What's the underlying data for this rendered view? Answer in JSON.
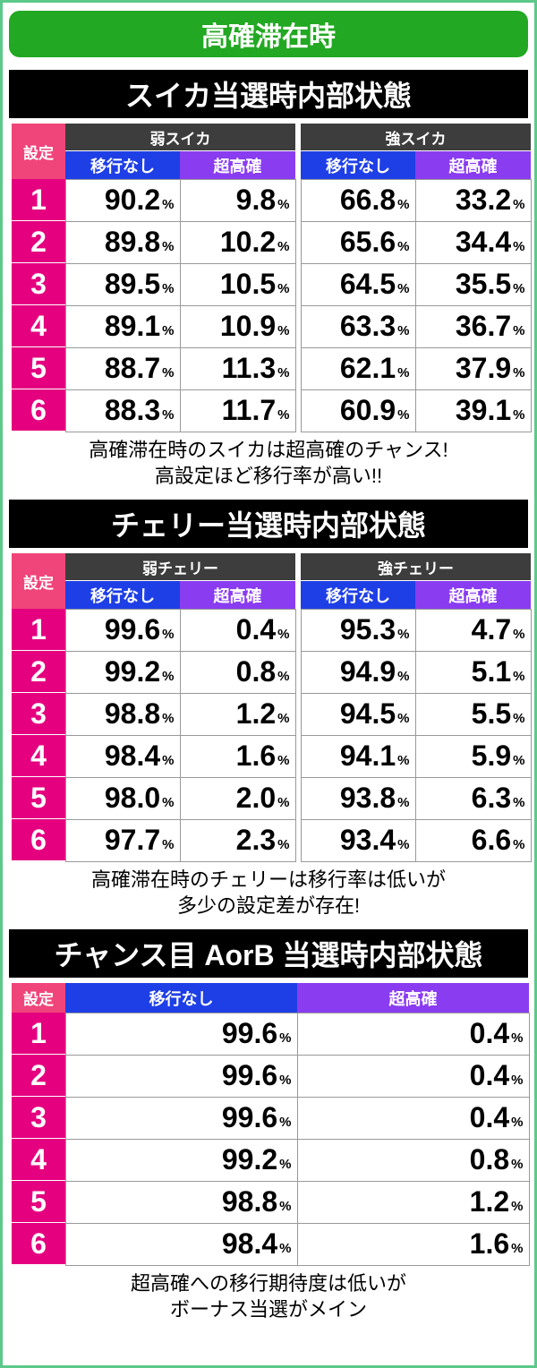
{
  "header": {
    "title": "高確滞在時"
  },
  "sections": [
    {
      "title": "スイカ当選時内部状態",
      "setting_label": "設定",
      "groups": [
        {
          "name": "弱スイカ",
          "columns": [
            "移行なし",
            "超高確"
          ]
        },
        {
          "name": "強スイカ",
          "columns": [
            "移行なし",
            "超高確"
          ]
        }
      ],
      "rows": [
        [
          "1",
          "90.2%",
          "9.8%",
          "66.8%",
          "33.2%"
        ],
        [
          "2",
          "89.8%",
          "10.2%",
          "65.6%",
          "34.4%"
        ],
        [
          "3",
          "89.5%",
          "10.5%",
          "64.5%",
          "35.5%"
        ],
        [
          "4",
          "89.1%",
          "10.9%",
          "63.3%",
          "36.7%"
        ],
        [
          "5",
          "88.7%",
          "11.3%",
          "62.1%",
          "37.9%"
        ],
        [
          "6",
          "88.3%",
          "11.7%",
          "60.9%",
          "39.1%"
        ]
      ],
      "note": [
        "高確滞在時のスイカは超高確のチャンス!",
        "高設定ほど移行率が高い!!"
      ]
    },
    {
      "title": "チェリー当選時内部状態",
      "setting_label": "設定",
      "groups": [
        {
          "name": "弱チェリー",
          "columns": [
            "移行なし",
            "超高確"
          ]
        },
        {
          "name": "強チェリー",
          "columns": [
            "移行なし",
            "超高確"
          ]
        }
      ],
      "rows": [
        [
          "1",
          "99.6%",
          "0.4%",
          "95.3%",
          "4.7%"
        ],
        [
          "2",
          "99.2%",
          "0.8%",
          "94.9%",
          "5.1%"
        ],
        [
          "3",
          "98.8%",
          "1.2%",
          "94.5%",
          "5.5%"
        ],
        [
          "4",
          "98.4%",
          "1.6%",
          "94.1%",
          "5.9%"
        ],
        [
          "5",
          "98.0%",
          "2.0%",
          "93.8%",
          "6.3%"
        ],
        [
          "6",
          "97.7%",
          "2.3%",
          "93.4%",
          "6.6%"
        ]
      ],
      "note": [
        "高確滞在時のチェリーは移行率は低いが",
        "多少の設定差が存在!"
      ]
    },
    {
      "title": "チャンス目 AorB 当選時内部状態",
      "setting_label": "設定",
      "groups": [
        {
          "columns": [
            "移行なし",
            "超高確"
          ]
        }
      ],
      "rows": [
        [
          "1",
          "99.6%",
          "0.4%"
        ],
        [
          "2",
          "99.6%",
          "0.4%"
        ],
        [
          "3",
          "99.6%",
          "0.4%"
        ],
        [
          "4",
          "99.2%",
          "0.8%"
        ],
        [
          "5",
          "98.8%",
          "1.2%"
        ],
        [
          "6",
          "98.4%",
          "1.6%"
        ]
      ],
      "note": [
        "超高確への移行期待度は低いが",
        "ボーナス当選がメイン"
      ]
    }
  ]
}
